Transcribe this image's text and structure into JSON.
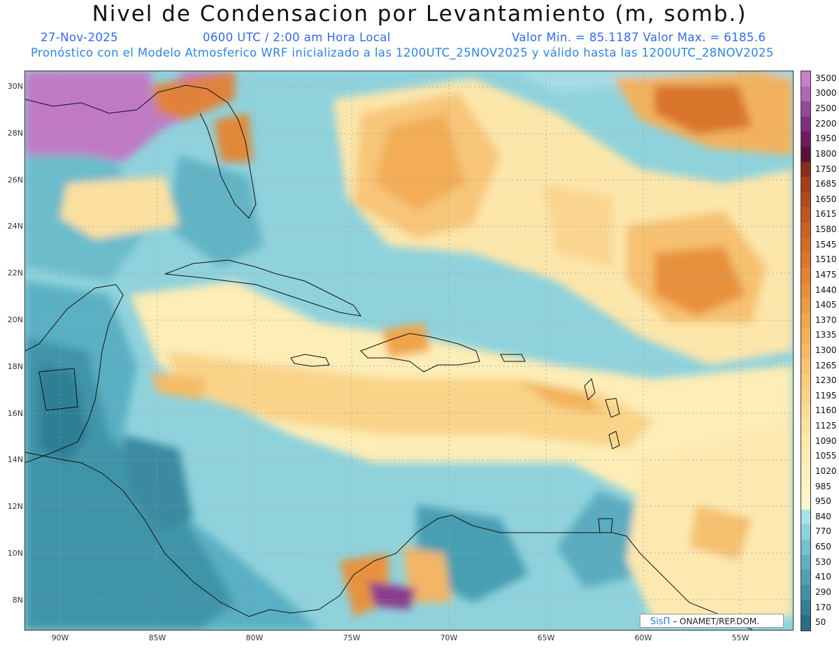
{
  "title": "Nivel de Condensacion por Levantamiento (m, somb.)",
  "date": "27-Nov-2025",
  "time": "0600 UTC / 2:00 am Hora Local",
  "min_max": "Valor Min. = 85.1187  Valor Max. = 6185.6",
  "description": "Pronóstico con el Modelo Atmosferico WRF inicializado a las 1200UTC_25NOV2025 y válido hasta las  1200UTC_28NOV2025",
  "credit": {
    "brand": "SisΠ",
    "org": " – ONAMET/REP.DOM."
  },
  "lat_labels": [
    "30N",
    "28N",
    "26N",
    "24N",
    "22N",
    "20N",
    "18N",
    "16N",
    "14N",
    "12N",
    "10N",
    "8N"
  ],
  "lon_labels": [
    "90W",
    "85W",
    "80W",
    "75W",
    "70W",
    "65W",
    "60W",
    "55W"
  ],
  "legend": {
    "labels": [
      "3500",
      "3000",
      "2500",
      "2200",
      "1950",
      "1800",
      "1750",
      "1685",
      "1650",
      "1615",
      "1580",
      "1545",
      "1510",
      "1475",
      "1440",
      "1405",
      "1370",
      "1335",
      "1300",
      "1265",
      "1230",
      "1195",
      "1160",
      "1125",
      "1090",
      "1055",
      "1020",
      "985",
      "950",
      "840",
      "770",
      "650",
      "530",
      "410",
      "290",
      "170",
      "50"
    ],
    "colors": [
      "#c87fc8",
      "#b067b2",
      "#94479a",
      "#7c2e80",
      "#6a1e5e",
      "#5a1238",
      "#8a2e1c",
      "#a53d1c",
      "#b24a1e",
      "#c0561f",
      "#cc6222",
      "#d46c26",
      "#dc762b",
      "#e28232",
      "#e88e3a",
      "#ec9a44",
      "#f0a64e",
      "#f2b05a",
      "#f4ba66",
      "#f6c472",
      "#f8cd7e",
      "#f9d58a",
      "#fadc96",
      "#fbe2a2",
      "#fce8ac",
      "#fdecb4",
      "#fdf0bc",
      "#fdf3c4",
      "#fef6cc",
      "#a8e2ea",
      "#8cd2de",
      "#74c0d0",
      "#62afc2",
      "#529fb4",
      "#4390a6",
      "#357f96",
      "#276e86"
    ]
  }
}
